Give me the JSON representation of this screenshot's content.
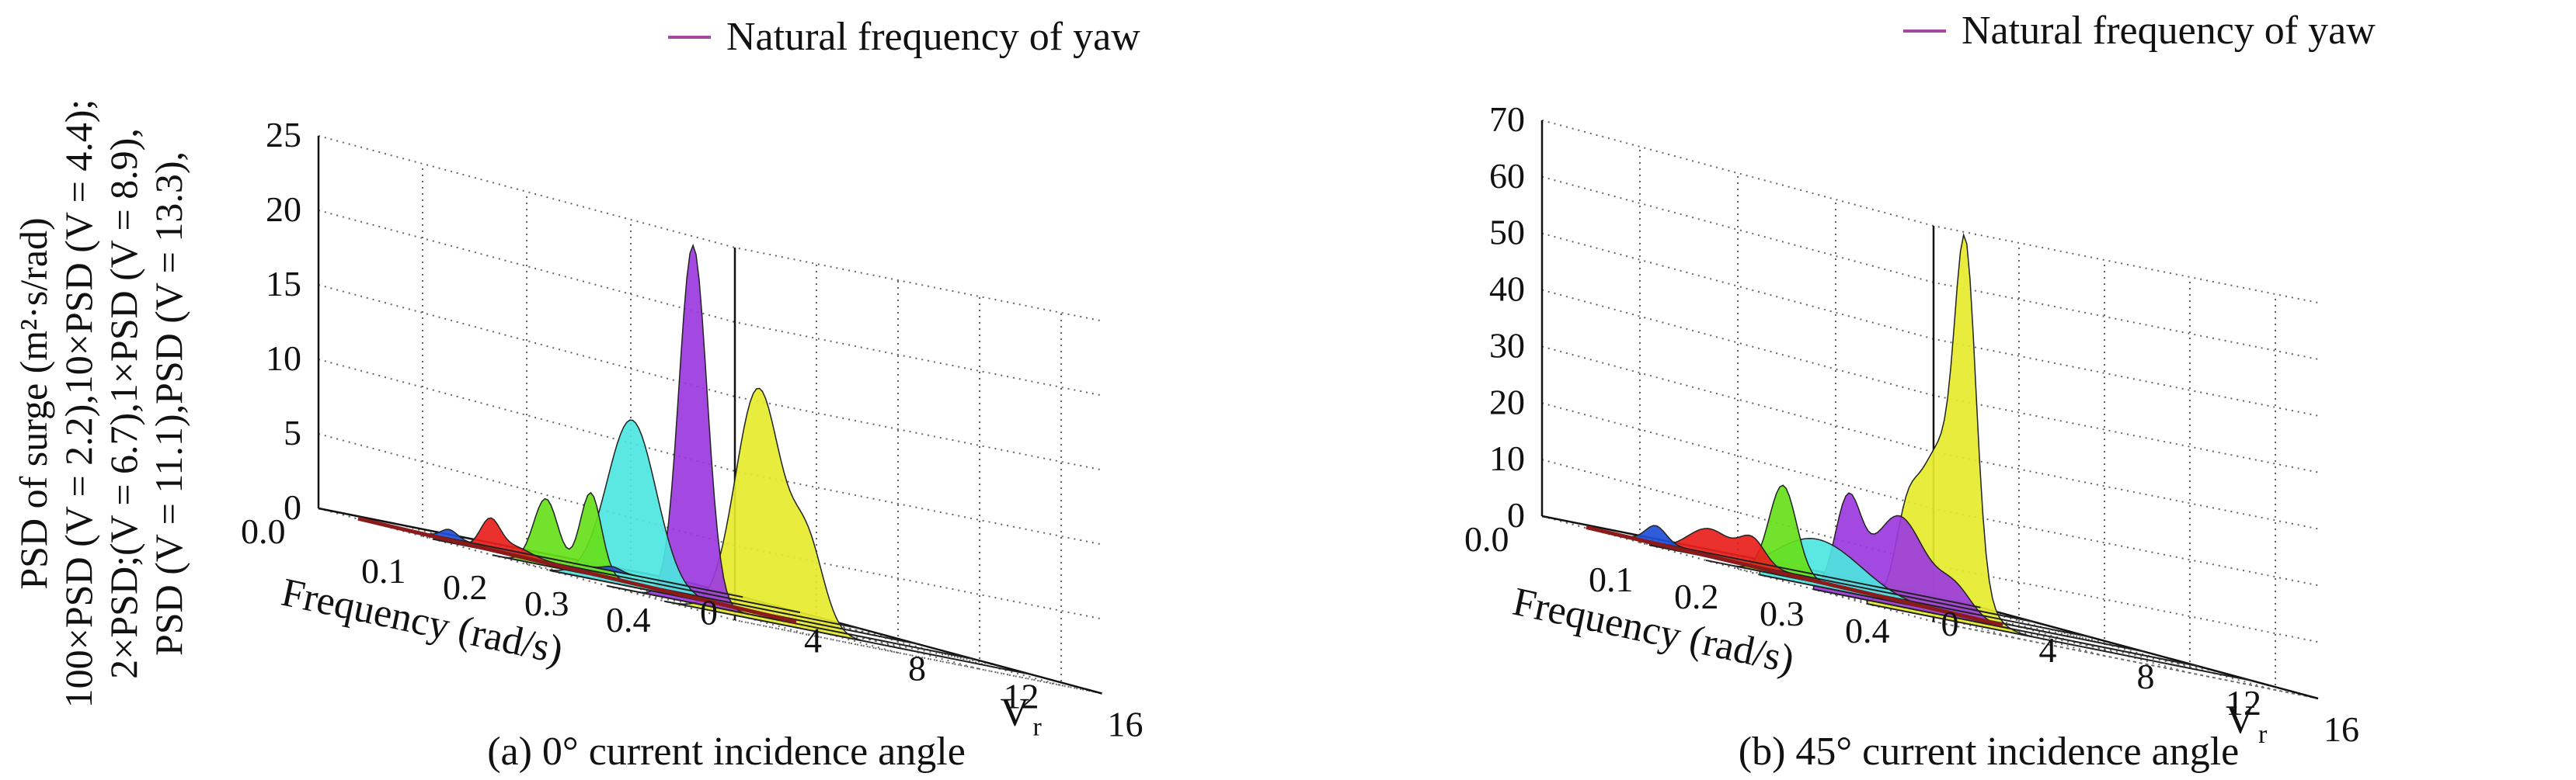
{
  "chart_data": [
    {
      "type": "waterfall",
      "caption": "(a) 0° current incidence angle",
      "legend": {
        "label": "Natural frequency of yaw",
        "color": "#a04aa0",
        "placement": "top"
      },
      "ylabel_lines": [
        "PSD of surge (m²·s/rad)",
        "100×PSD (V = 2.2),10×PSD (V = 4.4);",
        "2×PSD;(V = 6.7),1×PSD (V = 8.9),",
        "PSD (V = 11.1),PSD (V = 13.3),"
      ],
      "xlabel": "Frequency (rad/s)",
      "vr_label": "V",
      "vr_label_sub": "r",
      "freq_ticks": [
        "0.0",
        "0.1",
        "0.2",
        "0.3",
        "0.4"
      ],
      "vr_ticks": [
        "0",
        "4",
        "8",
        "12",
        "16"
      ],
      "z_ticks": [
        "0",
        "5",
        "10",
        "15",
        "20",
        "25"
      ],
      "xlim": [
        0,
        0.45
      ],
      "vrlim": [
        0,
        16
      ],
      "zlim": [
        0,
        25
      ],
      "natural_frequency_line": {
        "color": "#8b1a1a",
        "points": [
          [
            0.12,
            0
          ],
          [
            0.12,
            14
          ]
        ]
      },
      "series": [
        {
          "vr": 2.2,
          "color": "#1f4fd8",
          "peaks": [
            [
              0.09,
              0.6,
              0.01
            ],
            [
              0.29,
              0.3,
              0.01
            ]
          ]
        },
        {
          "vr": 4.4,
          "color": "#e8201c",
          "peaks": [
            [
              0.07,
              2.0,
              0.012
            ],
            [
              0.1,
              0.6,
              0.02
            ]
          ]
        },
        {
          "vr": 6.7,
          "color": "#66e01a",
          "peaks": [
            [
              0.065,
              4.5,
              0.015
            ],
            [
              0.12,
              5.5,
              0.013
            ]
          ]
        },
        {
          "vr": 8.9,
          "color": "#4ee6e0",
          "peaks": [
            [
              0.1,
              11.2,
              0.03
            ]
          ]
        },
        {
          "vr": 11.1,
          "color": "#9b3ae0",
          "peaks": [
            [
              0.105,
              24.0,
              0.017
            ]
          ]
        },
        {
          "vr": 13.3,
          "color": "#e6ec2c",
          "peaks": [
            [
              0.115,
              15.5,
              0.028
            ],
            [
              0.175,
              5.5,
              0.02
            ]
          ]
        }
      ]
    },
    {
      "type": "waterfall",
      "caption": "(b) 45° current incidence angle",
      "legend": {
        "label": "Natural frequency of yaw",
        "color": "#a04aa0",
        "placement": "top"
      },
      "xlabel": "Frequency (rad/s)",
      "vr_label": "V",
      "vr_label_sub": "r",
      "freq_ticks": [
        "0.0",
        "0.1",
        "0.2",
        "0.3",
        "0.4"
      ],
      "vr_ticks": [
        "0",
        "4",
        "8",
        "12",
        "16"
      ],
      "z_ticks": [
        "0",
        "10",
        "20",
        "30",
        "40",
        "50",
        "60",
        "70"
      ],
      "xlim": [
        0,
        0.45
      ],
      "vrlim": [
        0,
        16
      ],
      "zlim": [
        0,
        70
      ],
      "natural_frequency_line": {
        "color": "#8b1a1a",
        "points": [
          [
            0.12,
            0
          ],
          [
            0.12,
            14
          ]
        ]
      },
      "series": [
        {
          "vr": 2.2,
          "color": "#1f4fd8",
          "peaks": [
            [
              0.07,
              3.0,
              0.012
            ]
          ]
        },
        {
          "vr": 4.4,
          "color": "#e8201c",
          "peaks": [
            [
              0.07,
              5.0,
              0.025
            ],
            [
              0.12,
              4.5,
              0.015
            ]
          ]
        },
        {
          "vr": 6.7,
          "color": "#66e01a",
          "peaks": [
            [
              0.09,
              16.0,
              0.016
            ]
          ]
        },
        {
          "vr": 8.9,
          "color": "#4ee6e0",
          "peaks": [
            [
              0.05,
              6.0,
              0.04
            ],
            [
              0.1,
              4.0,
              0.04
            ]
          ]
        },
        {
          "vr": 11.1,
          "color": "#9b3ae0",
          "peaks": [
            [
              0.04,
              16.0,
              0.015
            ],
            [
              0.1,
              16.0,
              0.03
            ],
            [
              0.165,
              5.0,
              0.02
            ]
          ]
        },
        {
          "vr": 13.3,
          "color": "#e6ec2c",
          "peaks": [
            [
              0.045,
              8.0,
              0.012
            ],
            [
              0.085,
              30.0,
              0.03
            ],
            [
              0.115,
              50.0,
              0.012
            ]
          ]
        }
      ]
    }
  ]
}
